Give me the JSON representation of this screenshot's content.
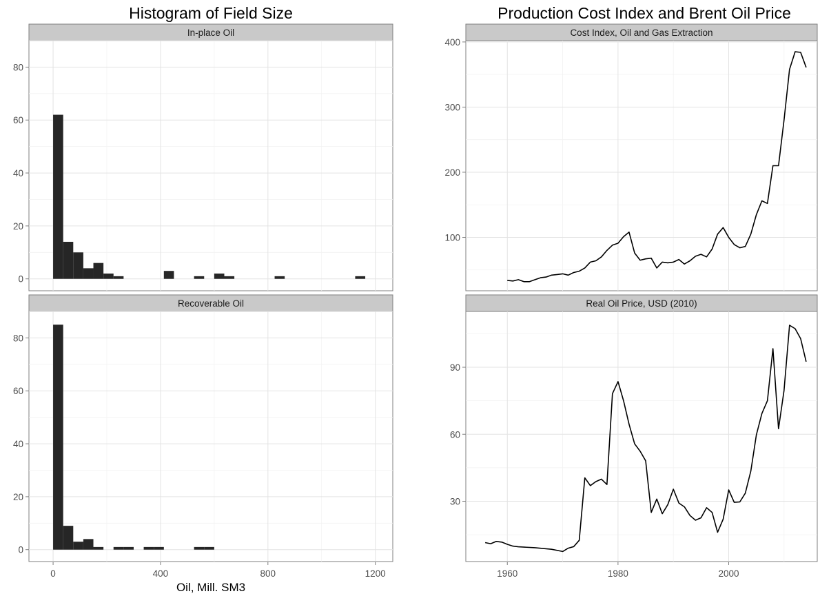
{
  "chart_data": [
    {
      "type": "bar",
      "group_title": "Histogram of Field Size",
      "facet": "In-place Oil",
      "xlabel": "Oil, Mill. SM3",
      "ylabel": "",
      "xlim": [
        -90,
        1265
      ],
      "ylim": [
        -4.5,
        90
      ],
      "xticks": [
        0,
        400,
        800,
        1200
      ],
      "yticks": [
        0,
        20,
        40,
        60,
        80
      ],
      "bin_width": 37.5,
      "bins": [
        {
          "x0": 0,
          "x1": 37.5,
          "count": 62
        },
        {
          "x0": 37.5,
          "x1": 75,
          "count": 14
        },
        {
          "x0": 75,
          "x1": 112.5,
          "count": 10
        },
        {
          "x0": 112.5,
          "x1": 150,
          "count": 4
        },
        {
          "x0": 150,
          "x1": 187.5,
          "count": 6
        },
        {
          "x0": 187.5,
          "x1": 225,
          "count": 2
        },
        {
          "x0": 225,
          "x1": 262.5,
          "count": 1
        },
        {
          "x0": 412.5,
          "x1": 450,
          "count": 3
        },
        {
          "x0": 525,
          "x1": 562.5,
          "count": 1
        },
        {
          "x0": 600,
          "x1": 637.5,
          "count": 2
        },
        {
          "x0": 637.5,
          "x1": 675,
          "count": 1
        },
        {
          "x0": 825,
          "x1": 862.5,
          "count": 1
        },
        {
          "x0": 1125,
          "x1": 1162.5,
          "count": 1
        }
      ]
    },
    {
      "type": "bar",
      "group_title": "Histogram of Field Size",
      "facet": "Recoverable Oil",
      "xlabel": "Oil, Mill. SM3",
      "ylabel": "",
      "xlim": [
        -90,
        1265
      ],
      "ylim": [
        -4.5,
        90
      ],
      "xticks": [
        0,
        400,
        800,
        1200
      ],
      "yticks": [
        0,
        20,
        40,
        60,
        80
      ],
      "bin_width": 37.5,
      "bins": [
        {
          "x0": 0,
          "x1": 37.5,
          "count": 85
        },
        {
          "x0": 37.5,
          "x1": 75,
          "count": 9
        },
        {
          "x0": 75,
          "x1": 112.5,
          "count": 3
        },
        {
          "x0": 112.5,
          "x1": 150,
          "count": 4
        },
        {
          "x0": 150,
          "x1": 187.5,
          "count": 1
        },
        {
          "x0": 225,
          "x1": 262.5,
          "count": 1
        },
        {
          "x0": 262.5,
          "x1": 300,
          "count": 1
        },
        {
          "x0": 337.5,
          "x1": 375,
          "count": 1
        },
        {
          "x0": 375,
          "x1": 412.5,
          "count": 1
        },
        {
          "x0": 525,
          "x1": 562.5,
          "count": 1
        },
        {
          "x0": 562.5,
          "x1": 600,
          "count": 1
        }
      ]
    },
    {
      "type": "line",
      "group_title": "Production Cost Index and Brent Oil Price",
      "facet": "Cost Index, Oil and Gas Extraction",
      "xlabel": "",
      "ylabel": "",
      "xlim": [
        1952.5,
        2016
      ],
      "ylim": [
        18,
        402
      ],
      "xticks": [
        1960,
        1980,
        2000
      ],
      "yticks": [
        100,
        200,
        300,
        400
      ],
      "x": [
        1960,
        1961,
        1962,
        1963,
        1964,
        1965,
        1966,
        1967,
        1968,
        1969,
        1970,
        1971,
        1972,
        1973,
        1974,
        1975,
        1976,
        1977,
        1978,
        1979,
        1980,
        1981,
        1982,
        1983,
        1984,
        1985,
        1986,
        1987,
        1988,
        1989,
        1990,
        1991,
        1992,
        1993,
        1994,
        1995,
        1996,
        1997,
        1998,
        1999,
        2000,
        2001,
        2002,
        2003,
        2004,
        2005,
        2006,
        2007,
        2008,
        2009,
        2010,
        2011,
        2012,
        2013,
        2014
      ],
      "y": [
        34,
        33,
        35,
        32,
        32,
        35,
        38,
        39,
        42,
        43,
        44,
        42,
        46,
        48,
        53,
        62,
        64,
        70,
        80,
        88,
        91,
        101,
        108,
        76,
        65,
        67,
        68,
        53,
        62,
        61,
        62,
        66,
        59,
        64,
        71,
        74,
        70,
        82,
        105,
        115,
        100,
        89,
        84,
        86,
        105,
        135,
        156,
        152,
        210,
        210,
        280,
        358,
        385,
        384,
        361
      ]
    },
    {
      "type": "line",
      "group_title": "Production Cost Index and Brent Oil Price",
      "facet": "Real Oil Price, USD (2010)",
      "xlabel": "",
      "ylabel": "",
      "xlim": [
        1952.5,
        2016
      ],
      "ylim": [
        3,
        115
      ],
      "xticks": [
        1960,
        1980,
        2000
      ],
      "yticks": [
        30,
        60,
        90
      ],
      "x": [
        1956,
        1957,
        1958,
        1959,
        1960,
        1961,
        1962,
        1965,
        1968,
        1970,
        1971,
        1972,
        1973,
        1974,
        1975,
        1976,
        1977,
        1978,
        1979,
        1980,
        1981,
        1982,
        1983,
        1984,
        1985,
        1986,
        1987,
        1988,
        1989,
        1990,
        1991,
        1992,
        1993,
        1994,
        1995,
        1996,
        1997,
        1998,
        1999,
        2000,
        2001,
        2002,
        2003,
        2004,
        2005,
        2006,
        2007,
        2008,
        2009,
        2010,
        2011,
        2012,
        2013,
        2014
      ],
      "y": [
        11.5,
        11,
        12,
        11.7,
        10.7,
        9.9,
        9.6,
        9.2,
        8.5,
        7.5,
        9,
        9.7,
        12.5,
        40.5,
        37,
        38.8,
        39.9,
        37.5,
        78.2,
        83.6,
        75,
        64.5,
        55.7,
        52.4,
        48.1,
        25,
        31,
        24.4,
        28.5,
        35.4,
        29.2,
        27.5,
        23.6,
        21.5,
        22.6,
        27.1,
        25,
        16.1,
        22,
        35.1,
        29.5,
        29.7,
        33.6,
        43.5,
        59.8,
        69.3,
        75,
        98.3,
        62.5,
        79.6,
        108.8,
        107.3,
        102.8,
        92.5
      ]
    }
  ]
}
